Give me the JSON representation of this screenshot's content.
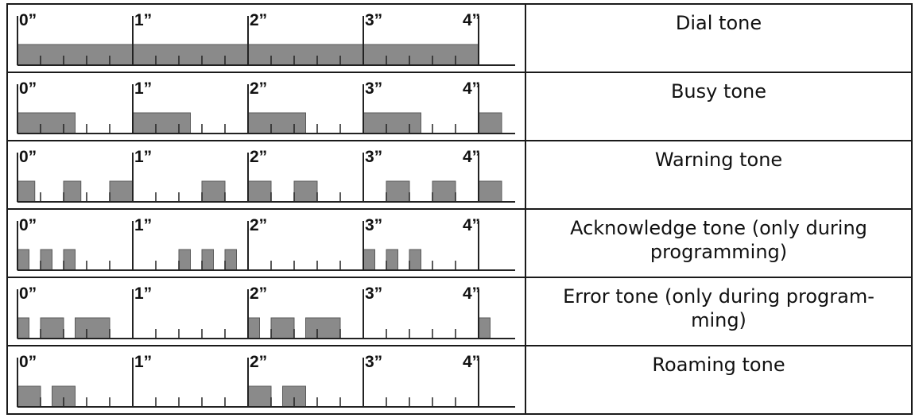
{
  "colors": {
    "pulse_fill": "#8a8a8a",
    "pulse_stroke": "#5a5a5a",
    "border": "#1a1a1a",
    "tick": "#222222"
  },
  "timeline": {
    "second_labels": [
      "0”",
      "1”",
      "2”",
      "3”",
      "4”"
    ],
    "ticks_per_second": 5
  },
  "tones": [
    {
      "label": "Dial tone",
      "pulses": [
        [
          0.0,
          4.0
        ]
      ]
    },
    {
      "label": "Busy tone",
      "pulses": [
        [
          0.0,
          0.5
        ],
        [
          1.0,
          1.5
        ],
        [
          2.0,
          2.5
        ],
        [
          3.0,
          3.5
        ],
        [
          4.0,
          4.2
        ]
      ]
    },
    {
      "label": "Warning tone",
      "pulses": [
        [
          0.0,
          0.15
        ],
        [
          0.4,
          0.55
        ],
        [
          0.8,
          1.0
        ],
        [
          1.6,
          1.8
        ],
        [
          2.0,
          2.2
        ],
        [
          2.4,
          2.6
        ],
        [
          3.2,
          3.4
        ],
        [
          3.6,
          3.8
        ],
        [
          4.0,
          4.2
        ]
      ]
    },
    {
      "label": "Acknowledge tone (only during programming)",
      "pulses": [
        [
          0.0,
          0.1
        ],
        [
          0.2,
          0.3
        ],
        [
          0.4,
          0.5
        ],
        [
          1.4,
          1.5
        ],
        [
          1.6,
          1.7
        ],
        [
          1.8,
          1.9
        ],
        [
          3.0,
          3.1
        ],
        [
          3.2,
          3.3
        ],
        [
          3.4,
          3.5
        ]
      ]
    },
    {
      "label": "Error tone (only during program-ming)",
      "pulses": [
        [
          0.0,
          0.1
        ],
        [
          0.2,
          0.4
        ],
        [
          0.5,
          0.8
        ],
        [
          2.0,
          2.1
        ],
        [
          2.2,
          2.4
        ],
        [
          2.5,
          2.8
        ],
        [
          4.0,
          4.1
        ]
      ]
    },
    {
      "label": "Roaming tone",
      "pulses": [
        [
          0.0,
          0.2
        ],
        [
          0.3,
          0.5
        ],
        [
          2.0,
          2.2
        ],
        [
          2.3,
          2.5
        ]
      ]
    }
  ]
}
